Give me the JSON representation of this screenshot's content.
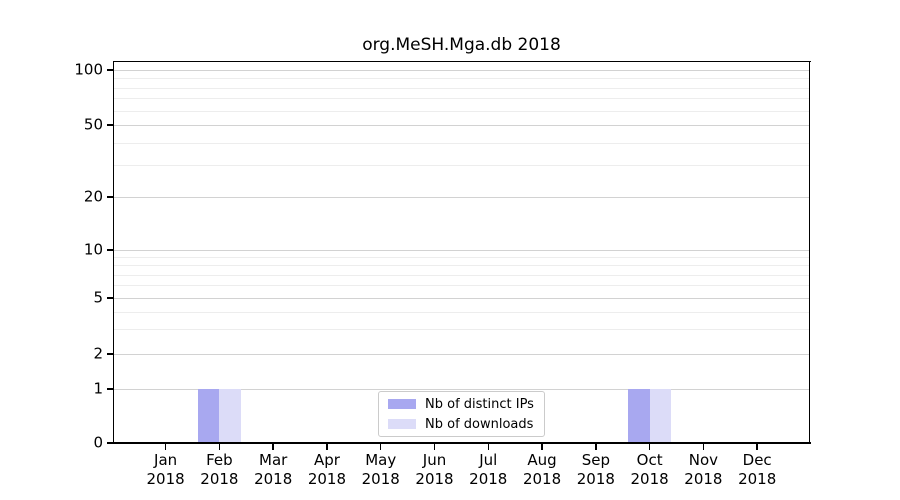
{
  "chart_data": {
    "type": "bar",
    "title": "org.MeSH.Mga.db 2018",
    "categories": [
      {
        "month": "Jan",
        "year": "2018"
      },
      {
        "month": "Feb",
        "year": "2018"
      },
      {
        "month": "Mar",
        "year": "2018"
      },
      {
        "month": "Apr",
        "year": "2018"
      },
      {
        "month": "May",
        "year": "2018"
      },
      {
        "month": "Jun",
        "year": "2018"
      },
      {
        "month": "Jul",
        "year": "2018"
      },
      {
        "month": "Aug",
        "year": "2018"
      },
      {
        "month": "Sep",
        "year": "2018"
      },
      {
        "month": "Oct",
        "year": "2018"
      },
      {
        "month": "Nov",
        "year": "2018"
      },
      {
        "month": "Dec",
        "year": "2018"
      }
    ],
    "series": [
      {
        "name": "Nb of distinct IPs",
        "color": "#a8a8f0",
        "values": [
          0,
          1,
          0,
          0,
          0,
          0,
          0,
          0,
          0,
          1,
          0,
          0
        ]
      },
      {
        "name": "Nb of downloads",
        "color": "#dcdcf8",
        "values": [
          0,
          1,
          0,
          0,
          0,
          0,
          0,
          0,
          0,
          1,
          0,
          0
        ]
      }
    ],
    "y_axis": {
      "scale": "log-like",
      "ticks": [
        0,
        1,
        2,
        5,
        10,
        20,
        50,
        100
      ],
      "minor_gridlines": [
        3,
        4,
        6,
        7,
        8,
        9,
        30,
        40,
        60,
        70,
        80,
        90
      ],
      "range": [
        0,
        105
      ]
    },
    "legend": {
      "position": "inside-bottom-center",
      "entries": [
        "Nb of distinct IPs",
        "Nb of downloads"
      ]
    },
    "grid": true,
    "colors": {
      "axis": "#000000",
      "major_grid": "#d2d2d2",
      "minor_grid": "#ededed",
      "background": "#ffffff"
    }
  }
}
